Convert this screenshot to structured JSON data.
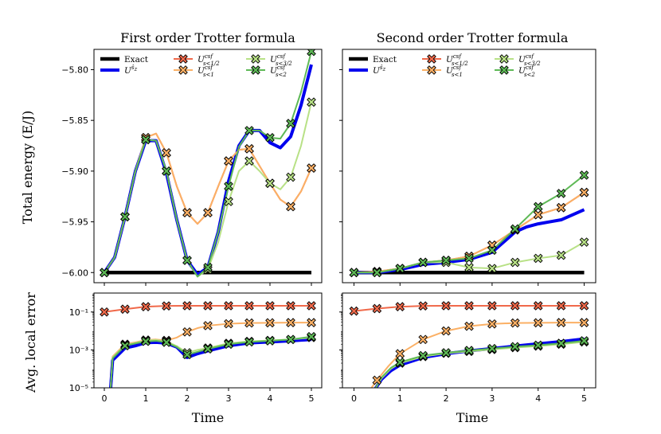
{
  "chart_data": [
    {
      "type": "line",
      "panel": "top-left",
      "title": "First order Trotter formula",
      "xlabel": "",
      "ylabel": "Total energy (E/J)",
      "xlim": [
        -0.25,
        5.25
      ],
      "ylim": [
        -6.01,
        -5.78
      ],
      "xticks": [
        0,
        1,
        2,
        3,
        4,
        5
      ],
      "yticks": [
        -6.0,
        -5.95,
        -5.9,
        -5.85,
        -5.8
      ],
      "ytick_labels": [
        "−6.00",
        "−5.95",
        "−5.90",
        "−5.85",
        "−5.80"
      ],
      "series": [
        {
          "key": "exact",
          "x": [
            0,
            5
          ],
          "y": [
            -6.0,
            -6.0
          ]
        },
        {
          "key": "usz",
          "x": [
            0,
            0.25,
            0.5,
            0.75,
            1.0,
            1.25,
            1.5,
            1.75,
            2.0,
            2.25,
            2.5,
            2.75,
            3.0,
            3.25,
            3.5,
            3.75,
            4.0,
            4.25,
            4.5,
            4.75,
            5.0
          ],
          "y": [
            -6.0,
            -5.985,
            -5.945,
            -5.9,
            -5.87,
            -5.87,
            -5.902,
            -5.948,
            -5.988,
            -6.002,
            -5.995,
            -5.96,
            -5.91,
            -5.875,
            -5.86,
            -5.86,
            -5.872,
            -5.877,
            -5.866,
            -5.835,
            -5.795
          ]
        },
        {
          "key": "u12",
          "x": [
            0,
            0.25,
            0.5,
            0.75,
            1.0,
            1.25,
            1.5,
            1.75,
            2.0,
            2.25,
            2.5,
            2.75,
            3.0,
            3.25,
            3.5,
            3.75,
            4.0,
            4.25,
            4.5,
            4.75,
            5.0
          ],
          "y": [
            -6.0,
            -5.985,
            -5.945,
            -5.9,
            -5.867,
            -5.863,
            -5.882,
            -5.915,
            -5.941,
            -5.952,
            -5.941,
            -5.915,
            -5.89,
            -5.879,
            -5.878,
            -5.895,
            -5.912,
            -5.928,
            -5.935,
            -5.92,
            -5.897
          ]
        },
        {
          "key": "u1",
          "x": [
            0,
            0.25,
            0.5,
            0.75,
            1.0,
            1.25,
            1.5,
            1.75,
            2.0,
            2.25,
            2.5,
            2.75,
            3.0,
            3.25,
            3.5,
            3.75,
            4.0,
            4.25,
            4.5,
            4.75,
            5.0
          ],
          "y": [
            -6.0,
            -5.985,
            -5.945,
            -5.9,
            -5.867,
            -5.863,
            -5.882,
            -5.915,
            -5.941,
            -5.952,
            -5.941,
            -5.915,
            -5.89,
            -5.879,
            -5.878,
            -5.895,
            -5.912,
            -5.928,
            -5.935,
            -5.92,
            -5.897
          ]
        },
        {
          "key": "u32",
          "x": [
            0,
            0.25,
            0.5,
            0.75,
            1.0,
            1.25,
            1.5,
            1.75,
            2.0,
            2.25,
            2.5,
            2.75,
            3.0,
            3.25,
            3.5,
            3.75,
            4.0,
            4.25,
            4.5,
            4.75,
            5.0
          ],
          "y": [
            -6.0,
            -5.985,
            -5.945,
            -5.9,
            -5.869,
            -5.87,
            -5.9,
            -5.948,
            -5.988,
            -6.004,
            -5.997,
            -5.97,
            -5.93,
            -5.9,
            -5.89,
            -5.9,
            -5.912,
            -5.918,
            -5.906,
            -5.875,
            -5.832
          ]
        },
        {
          "key": "u2",
          "x": [
            0,
            0.25,
            0.5,
            0.75,
            1.0,
            1.25,
            1.5,
            1.75,
            2.0,
            2.25,
            2.5,
            2.75,
            3.0,
            3.25,
            3.5,
            3.75,
            4.0,
            4.25,
            4.5,
            4.75,
            5.0
          ],
          "y": [
            -6.0,
            -5.985,
            -5.945,
            -5.9,
            -5.869,
            -5.87,
            -5.9,
            -5.948,
            -5.988,
            -6.004,
            -5.995,
            -5.96,
            -5.915,
            -5.876,
            -5.86,
            -5.86,
            -5.867,
            -5.868,
            -5.853,
            -5.822,
            -5.782
          ]
        }
      ]
    },
    {
      "type": "line",
      "panel": "top-right",
      "title": "Second order Trotter formula",
      "xlabel": "",
      "ylabel": "",
      "xlim": [
        -0.25,
        5.25
      ],
      "ylim": [
        -6.01,
        -5.78
      ],
      "xticks": [
        0,
        1,
        2,
        3,
        4,
        5
      ],
      "yticks": [
        -6.0,
        -5.95,
        -5.9,
        -5.85,
        -5.8
      ],
      "series": [
        {
          "key": "exact",
          "x": [
            0,
            5
          ],
          "y": [
            -6.0,
            -6.0
          ]
        },
        {
          "key": "usz",
          "x": [
            0,
            0.5,
            1.0,
            1.5,
            2.0,
            2.5,
            3.0,
            3.25,
            3.5,
            3.75,
            4.0,
            4.25,
            4.5,
            4.75,
            5.0
          ],
          "y": [
            -6.0,
            -6.0,
            -5.997,
            -5.992,
            -5.99,
            -5.987,
            -5.98,
            -5.97,
            -5.96,
            -5.955,
            -5.952,
            -5.95,
            -5.948,
            -5.943,
            -5.938
          ]
        },
        {
          "key": "u12",
          "x": [
            0,
            0.5,
            1.0,
            1.5,
            2.0,
            2.5,
            3.0,
            3.5,
            4.0,
            4.5,
            5.0
          ],
          "y": [
            -6.0,
            -5.999,
            -5.996,
            -5.99,
            -5.988,
            -5.984,
            -5.973,
            -5.958,
            -5.943,
            -5.936,
            -5.921
          ]
        },
        {
          "key": "u1",
          "x": [
            0,
            0.5,
            1.0,
            1.5,
            2.0,
            2.5,
            3.0,
            3.5,
            4.0,
            4.5,
            5.0
          ],
          "y": [
            -6.0,
            -5.999,
            -5.996,
            -5.99,
            -5.988,
            -5.984,
            -5.973,
            -5.958,
            -5.943,
            -5.936,
            -5.921
          ]
        },
        {
          "key": "u32",
          "x": [
            0,
            0.5,
            1.0,
            1.5,
            2.0,
            2.5,
            3.0,
            3.5,
            4.0,
            4.5,
            5.0
          ],
          "y": [
            -6.0,
            -6.0,
            -5.996,
            -5.99,
            -5.99,
            -5.995,
            -5.996,
            -5.99,
            -5.986,
            -5.983,
            -5.97
          ]
        },
        {
          "key": "u2",
          "x": [
            0,
            0.5,
            1.0,
            1.5,
            2.0,
            2.5,
            3.0,
            3.5,
            4.0,
            4.5,
            5.0
          ],
          "y": [
            -6.0,
            -6.0,
            -5.996,
            -5.99,
            -5.988,
            -5.986,
            -5.978,
            -5.957,
            -5.935,
            -5.922,
            -5.904
          ]
        }
      ]
    },
    {
      "type": "line",
      "panel": "bottom-left",
      "title": "",
      "xlabel": "Time",
      "ylabel": "Avg. local error",
      "yscale": "log",
      "xlim": [
        -0.25,
        5.25
      ],
      "ylim_log10": [
        -5,
        0
      ],
      "xticks": [
        0,
        1,
        2,
        3,
        4,
        5
      ],
      "xtick_labels": [
        "0",
        "1",
        "2",
        "3",
        "4",
        "5"
      ],
      "yticks_log10": [
        -5,
        -3,
        -1
      ],
      "ytick_labels": [
        "10⁻⁵",
        "10⁻³",
        "10⁻¹"
      ],
      "series": [
        {
          "key": "usz",
          "x": [
            0.15,
            0.2,
            0.5,
            0.75,
            1.0,
            1.25,
            1.5,
            1.75,
            2.0,
            2.25,
            2.5,
            3.0,
            3.5,
            4.0,
            4.5,
            5.0
          ],
          "y": [
            -5.1,
            -3.55,
            -2.9,
            -2.78,
            -2.62,
            -2.6,
            -2.64,
            -2.85,
            -3.4,
            -3.2,
            -3.05,
            -2.78,
            -2.63,
            -2.58,
            -2.52,
            -2.45
          ]
        },
        {
          "key": "u12",
          "x": [
            0,
            0.5,
            1.0,
            1.5,
            2.0,
            2.5,
            3.0,
            3.5,
            4.0,
            4.5,
            5.0
          ],
          "y": [
            -1.0,
            -0.85,
            -0.72,
            -0.68,
            -0.67,
            -0.67,
            -0.67,
            -0.67,
            -0.67,
            -0.67,
            -0.67
          ]
        },
        {
          "key": "u1",
          "x": [
            0.15,
            0.2,
            0.5,
            0.75,
            1.0,
            1.25,
            1.5,
            1.75,
            2.0,
            2.25,
            2.5,
            3.0,
            3.5,
            4.0,
            4.5,
            5.0
          ],
          "y": [
            -5.1,
            -3.35,
            -2.7,
            -2.6,
            -2.48,
            -2.45,
            -2.5,
            -2.35,
            -2.05,
            -1.85,
            -1.72,
            -1.62,
            -1.58,
            -1.57,
            -1.56,
            -1.56
          ]
        },
        {
          "key": "u32",
          "x": [
            0.15,
            0.2,
            0.5,
            0.75,
            1.0,
            1.25,
            1.5,
            1.75,
            2.0,
            2.25,
            2.5,
            3.0,
            3.5,
            4.0,
            4.5,
            5.0
          ],
          "y": [
            -5.1,
            -3.4,
            -2.75,
            -2.63,
            -2.5,
            -2.48,
            -2.55,
            -2.8,
            -3.15,
            -3.0,
            -2.9,
            -2.65,
            -2.55,
            -2.5,
            -2.45,
            -2.35
          ]
        },
        {
          "key": "u2",
          "x": [
            0.15,
            0.2,
            0.5,
            0.75,
            1.0,
            1.25,
            1.5,
            1.75,
            2.0,
            2.25,
            2.5,
            3.0,
            3.5,
            4.0,
            4.5,
            5.0
          ],
          "y": [
            -5.1,
            -3.45,
            -2.78,
            -2.66,
            -2.55,
            -2.52,
            -2.6,
            -2.85,
            -3.25,
            -3.1,
            -2.95,
            -2.7,
            -2.58,
            -2.52,
            -2.45,
            -2.3
          ]
        }
      ]
    },
    {
      "type": "line",
      "panel": "bottom-right",
      "title": "",
      "xlabel": "Time",
      "ylabel": "",
      "yscale": "log",
      "xlim": [
        -0.25,
        5.25
      ],
      "ylim_log10": [
        -5,
        0
      ],
      "xticks": [
        0,
        1,
        2,
        3,
        4,
        5
      ],
      "xtick_labels": [
        "0",
        "1",
        "2",
        "3",
        "4",
        "5"
      ],
      "yticks_log10": [
        -5,
        -3,
        -1
      ],
      "series": [
        {
          "key": "usz",
          "x": [
            0.45,
            0.6,
            0.8,
            1.0,
            1.5,
            2.0,
            2.5,
            3.0,
            3.5,
            4.0,
            4.5,
            5.0
          ],
          "y": [
            -5.1,
            -4.55,
            -4.1,
            -3.8,
            -3.4,
            -3.2,
            -3.05,
            -2.93,
            -2.8,
            -2.68,
            -2.56,
            -2.42
          ]
        },
        {
          "key": "u12",
          "x": [
            0,
            0.5,
            1.0,
            1.5,
            2.0,
            2.5,
            3.0,
            3.5,
            4.0,
            4.5,
            5.0
          ],
          "y": [
            -0.95,
            -0.82,
            -0.72,
            -0.68,
            -0.67,
            -0.67,
            -0.67,
            -0.67,
            -0.67,
            -0.67,
            -0.67
          ]
        },
        {
          "key": "u1",
          "x": [
            0.35,
            0.5,
            0.75,
            1.0,
            1.5,
            2.0,
            2.5,
            3.0,
            3.5,
            4.0,
            4.5,
            5.0
          ],
          "y": [
            -5.1,
            -4.6,
            -3.85,
            -3.2,
            -2.45,
            -2.0,
            -1.75,
            -1.63,
            -1.58,
            -1.57,
            -1.56,
            -1.56
          ]
        },
        {
          "key": "u32",
          "x": [
            0.45,
            0.6,
            0.8,
            1.0,
            1.5,
            2.0,
            2.5,
            3.0,
            3.5,
            4.0,
            4.5,
            5.0
          ],
          "y": [
            -5.1,
            -4.5,
            -4.0,
            -3.7,
            -3.35,
            -3.18,
            -3.08,
            -2.98,
            -2.88,
            -2.8,
            -2.7,
            -2.58
          ]
        },
        {
          "key": "u2",
          "x": [
            0.45,
            0.6,
            0.8,
            1.0,
            1.5,
            2.0,
            2.5,
            3.0,
            3.5,
            4.0,
            4.5,
            5.0
          ],
          "y": [
            -5.1,
            -4.45,
            -3.95,
            -3.65,
            -3.3,
            -3.15,
            -3.03,
            -2.93,
            -2.83,
            -2.75,
            -2.65,
            -2.52
          ]
        }
      ]
    }
  ],
  "legend": {
    "placement": "top-left inside each top panel",
    "entries": [
      {
        "key": "exact",
        "label": "Exact",
        "sub": "",
        "sup": "",
        "color": "#000000",
        "marker": false
      },
      {
        "key": "usz",
        "label": "U",
        "sub": "",
        "sup": "ŝ",
        "sup_sub": "z",
        "color": "#0000ee",
        "marker": false
      },
      {
        "key": "u12",
        "label": "U",
        "sup": "csf",
        "sub": "s<1/2",
        "color": "#f0694a",
        "marker": true
      },
      {
        "key": "u1",
        "label": "U",
        "sup": "csf",
        "sub": "s<1",
        "color": "#fbb065",
        "marker": true
      },
      {
        "key": "u32",
        "label": "U",
        "sup": "csf",
        "sub": "s<3/2",
        "color": "#b8e186",
        "marker": true
      },
      {
        "key": "u2",
        "label": "U",
        "sup": "csf",
        "sub": "s<2",
        "color": "#5eb956",
        "marker": true
      }
    ]
  },
  "styles": {
    "exact": {
      "color": "#000000",
      "width": 4.5
    },
    "usz": {
      "color": "#0000ee",
      "width": 4
    },
    "u12": {
      "color": "#f0694a",
      "width": 2
    },
    "u1": {
      "color": "#fbb065",
      "width": 2
    },
    "u32": {
      "color": "#b8e186",
      "width": 2
    },
    "u2": {
      "color": "#5eb956",
      "width": 2
    }
  }
}
